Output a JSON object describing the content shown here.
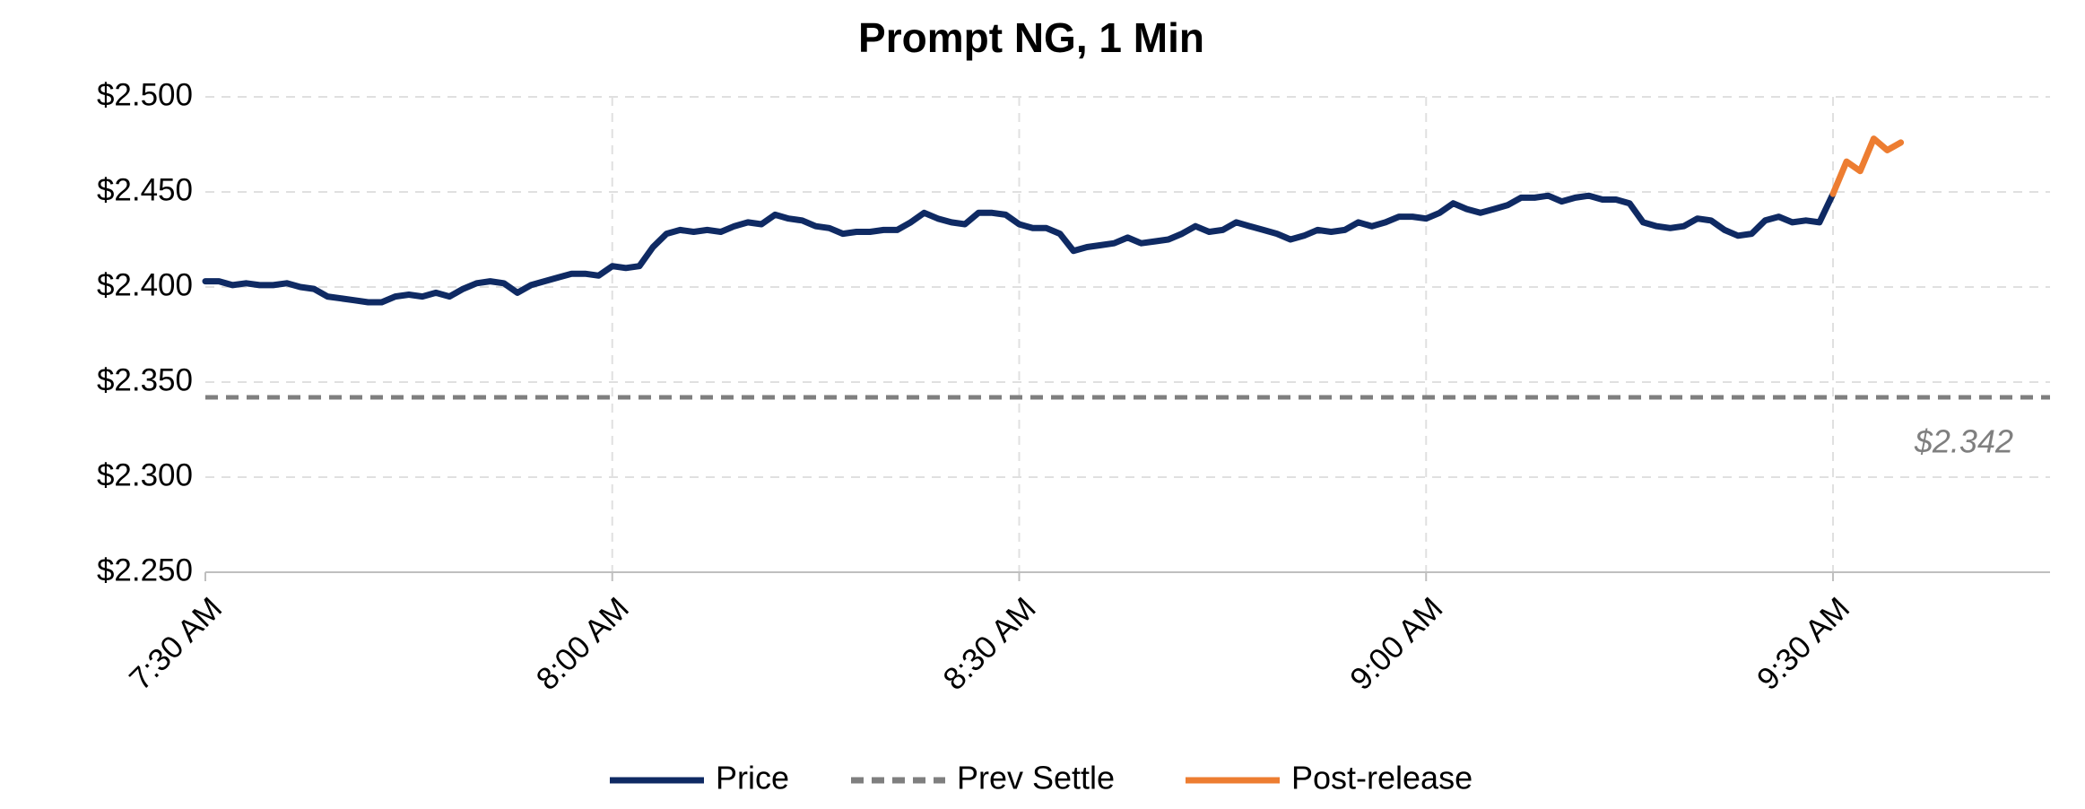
{
  "chart_data": {
    "type": "line",
    "title": "Prompt NG, 1 Min",
    "categories": [
      "7:30 AM",
      null,
      null,
      null,
      null,
      null,
      null,
      null,
      null,
      null,
      null,
      null,
      null,
      null,
      null,
      null,
      null,
      null,
      null,
      null,
      null,
      null,
      null,
      null,
      null,
      null,
      null,
      null,
      null,
      null,
      "8:00 AM",
      null,
      null,
      null,
      null,
      null,
      null,
      null,
      null,
      null,
      null,
      null,
      null,
      null,
      null,
      null,
      null,
      null,
      null,
      null,
      null,
      null,
      null,
      null,
      null,
      null,
      null,
      null,
      null,
      null,
      "8:30 AM",
      null,
      null,
      null,
      null,
      null,
      null,
      null,
      null,
      null,
      null,
      null,
      null,
      null,
      null,
      null,
      null,
      null,
      null,
      null,
      null,
      null,
      null,
      null,
      null,
      null,
      null,
      null,
      null,
      null,
      "9:00 AM",
      null,
      null,
      null,
      null,
      null,
      null,
      null,
      null,
      null,
      null,
      null,
      null,
      null,
      null,
      null,
      null,
      null,
      null,
      null,
      null,
      null,
      null,
      null,
      null,
      null,
      null,
      null,
      null,
      null,
      "9:30 AM",
      null,
      null,
      null,
      null,
      null,
      null,
      null,
      null,
      null,
      null,
      null,
      null,
      null,
      null,
      null,
      null
    ],
    "series": [
      {
        "name": "Price",
        "color": "#0f2a63",
        "values": [
          2.403,
          2.403,
          2.401,
          2.402,
          2.401,
          2.401,
          2.402,
          2.4,
          2.399,
          2.395,
          2.394,
          2.393,
          2.392,
          2.392,
          2.395,
          2.396,
          2.395,
          2.397,
          2.395,
          2.399,
          2.402,
          2.403,
          2.402,
          2.397,
          2.401,
          2.403,
          2.405,
          2.407,
          2.407,
          2.406,
          2.411,
          2.41,
          2.411,
          2.421,
          2.428,
          2.43,
          2.429,
          2.43,
          2.429,
          2.432,
          2.434,
          2.433,
          2.438,
          2.436,
          2.435,
          2.432,
          2.431,
          2.428,
          2.429,
          2.429,
          2.43,
          2.43,
          2.434,
          2.439,
          2.436,
          2.434,
          2.433,
          2.439,
          2.439,
          2.438,
          2.433,
          2.431,
          2.431,
          2.428,
          2.419,
          2.421,
          2.422,
          2.423,
          2.426,
          2.423,
          2.424,
          2.425,
          2.428,
          2.432,
          2.429,
          2.43,
          2.434,
          2.432,
          2.43,
          2.428,
          2.425,
          2.427,
          2.43,
          2.429,
          2.43,
          2.434,
          2.432,
          2.434,
          2.437,
          2.437,
          2.436,
          2.439,
          2.444,
          2.441,
          2.439,
          2.441,
          2.443,
          2.447,
          2.447,
          2.448,
          2.445,
          2.447,
          2.448,
          2.446,
          2.446,
          2.444,
          2.434,
          2.432,
          2.431,
          2.432,
          2.436,
          2.435,
          2.43,
          2.427,
          2.428,
          2.435,
          2.437,
          2.434,
          2.435,
          2.434,
          2.449,
          null,
          null,
          null,
          null,
          null,
          null,
          null,
          null,
          null,
          null,
          null,
          null,
          null,
          null,
          null,
          null
        ]
      },
      {
        "name": "Post-release",
        "color": "#ed7d31",
        "values": [
          null,
          null,
          null,
          null,
          null,
          null,
          null,
          null,
          null,
          null,
          null,
          null,
          null,
          null,
          null,
          null,
          null,
          null,
          null,
          null,
          null,
          null,
          null,
          null,
          null,
          null,
          null,
          null,
          null,
          null,
          null,
          null,
          null,
          null,
          null,
          null,
          null,
          null,
          null,
          null,
          null,
          null,
          null,
          null,
          null,
          null,
          null,
          null,
          null,
          null,
          null,
          null,
          null,
          null,
          null,
          null,
          null,
          null,
          null,
          null,
          null,
          null,
          null,
          null,
          null,
          null,
          null,
          null,
          null,
          null,
          null,
          null,
          null,
          null,
          null,
          null,
          null,
          null,
          null,
          null,
          null,
          null,
          null,
          null,
          null,
          null,
          null,
          null,
          null,
          null,
          null,
          null,
          null,
          null,
          null,
          null,
          null,
          null,
          null,
          null,
          null,
          null,
          null,
          null,
          null,
          null,
          null,
          null,
          null,
          null,
          null,
          null,
          null,
          null,
          null,
          null,
          null,
          null,
          null,
          null,
          2.449,
          2.466,
          2.461,
          2.478,
          2.472,
          2.476,
          null,
          null,
          null,
          null,
          null,
          null,
          null,
          null,
          null,
          null,
          null
        ]
      }
    ],
    "reference_line": {
      "name": "Prev Settle",
      "color": "#7f7f7f",
      "style": "dashed",
      "value": 2.342,
      "value_label": "$2.342"
    },
    "ylim": [
      2.25,
      2.5
    ],
    "yticks": [
      {
        "value": 2.25,
        "label": "$2.250"
      },
      {
        "value": 2.3,
        "label": "$2.300"
      },
      {
        "value": 2.35,
        "label": "$2.350"
      },
      {
        "value": 2.4,
        "label": "$2.400"
      },
      {
        "value": 2.45,
        "label": "$2.450"
      },
      {
        "value": 2.5,
        "label": "$2.500"
      }
    ],
    "grid": true,
    "legend": "bottom"
  }
}
